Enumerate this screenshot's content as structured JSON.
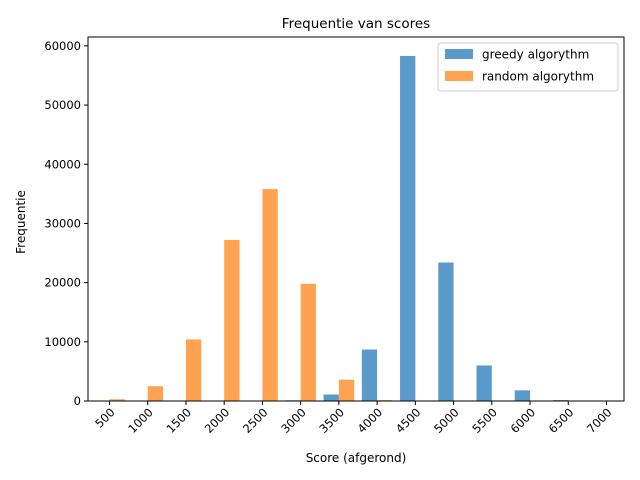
{
  "chart_data": {
    "type": "bar",
    "title": "Frequentie van scores",
    "xlabel": "Score (afgerond)",
    "ylabel": "Frequentie",
    "categories": [
      "500",
      "1000",
      "1500",
      "2000",
      "2500",
      "3000",
      "3500",
      "4000",
      "4500",
      "5000",
      "5500",
      "6000",
      "6500",
      "7000"
    ],
    "yticks": [
      0,
      10000,
      20000,
      30000,
      40000,
      50000,
      60000
    ],
    "ylim": [
      0,
      61500
    ],
    "grid": false,
    "legend_position": "top-right",
    "series": [
      {
        "name": "greedy algorythm",
        "color": "#5b9bcc",
        "values": [
          0,
          0,
          0,
          0,
          0,
          120,
          1100,
          8700,
          58300,
          23400,
          6000,
          1800,
          150,
          0
        ]
      },
      {
        "name": "random algorythm",
        "color": "#ffa352",
        "values": [
          300,
          2500,
          10400,
          27200,
          35800,
          19800,
          3600,
          150,
          0,
          0,
          0,
          0,
          0,
          0
        ]
      }
    ]
  }
}
